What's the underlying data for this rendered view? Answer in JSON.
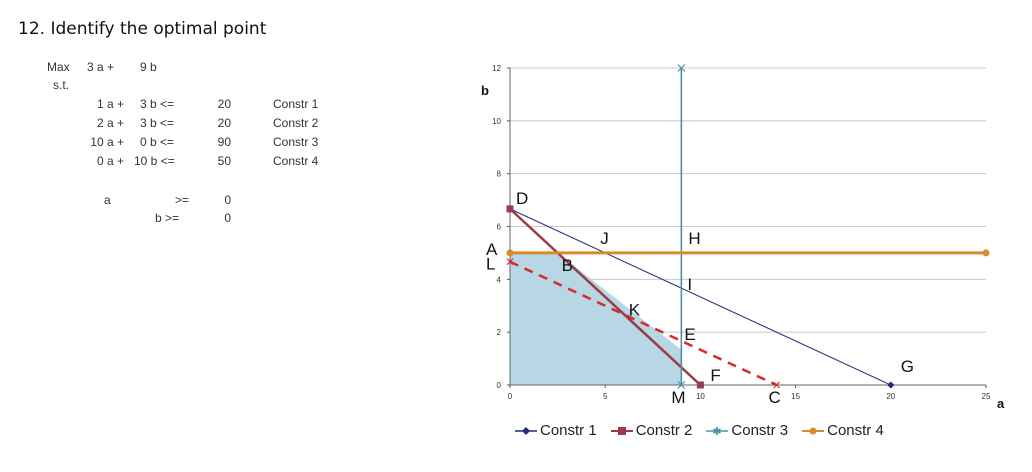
{
  "title": "12. Identify the optimal point",
  "lp": {
    "objective": {
      "label": "Max",
      "a": "3 a +",
      "b": "9 b"
    },
    "st": "s.t.",
    "constraints": [
      {
        "a": "1 a +",
        "b": "3 b <=",
        "rhs": "20",
        "name": "Constr 1"
      },
      {
        "a": "2 a +",
        "b": "3 b <=",
        "rhs": "20",
        "name": "Constr 2"
      },
      {
        "a": "10 a +",
        "b": "0 b <=",
        "rhs": "90",
        "name": "Constr 3"
      },
      {
        "a": "0 a +",
        "b": "10 b <=",
        "rhs": "50",
        "name": "Constr 4"
      }
    ],
    "nonneg": [
      {
        "var": "a",
        "op": ">=",
        "rhs": "0"
      },
      {
        "var": "b >=",
        "op": "",
        "rhs": "0"
      }
    ]
  },
  "chart_data": {
    "type": "line",
    "xlabel": "a",
    "ylabel": "b",
    "xlim": [
      0,
      25
    ],
    "ylim": [
      0,
      12
    ],
    "xticks": [
      0,
      5,
      10,
      15,
      20,
      25
    ],
    "yticks": [
      0,
      2,
      4,
      6,
      8,
      10,
      12
    ],
    "grid": "horizontal",
    "legend_position": "bottom",
    "series": [
      {
        "name": "Constr 1",
        "color": "#1f2a7a",
        "marker": "diamond",
        "points": [
          [
            0,
            6.667
          ],
          [
            20,
            0
          ]
        ]
      },
      {
        "name": "Constr 2",
        "color": "#9b3b4a",
        "marker": "square",
        "points": [
          [
            0,
            6.667
          ],
          [
            10,
            0
          ]
        ]
      },
      {
        "name": "Constr 3",
        "color": "#4a90a8",
        "marker": "star",
        "points": [
          [
            9,
            0
          ],
          [
            9,
            12
          ]
        ]
      },
      {
        "name": "Constr 4",
        "color": "#d98b2b",
        "marker": "circle",
        "points": [
          [
            0,
            5
          ],
          [
            25,
            5
          ]
        ]
      }
    ],
    "objective_line": {
      "color": "#d62b2b",
      "style": "dashed",
      "points": [
        [
          0,
          4.667
        ],
        [
          14,
          0
        ]
      ]
    },
    "feasible_region": {
      "color": "#b6d7e3",
      "points": [
        [
          0,
          0
        ],
        [
          0,
          5
        ],
        [
          2.5,
          5
        ],
        [
          9,
          1.333
        ],
        [
          9,
          0
        ]
      ]
    },
    "point_labels": [
      {
        "text": "D",
        "x": 0,
        "y": 6.667
      },
      {
        "text": "J",
        "x": 5,
        "y": 5
      },
      {
        "text": "H",
        "x": 9,
        "y": 5
      },
      {
        "text": "A",
        "x": 0,
        "y": 5
      },
      {
        "text": "L",
        "x": 0,
        "y": 4.667
      },
      {
        "text": "B",
        "x": 2.5,
        "y": 5
      },
      {
        "text": "I",
        "x": 9,
        "y": 3.667
      },
      {
        "text": "K",
        "x": 6.5,
        "y": 2.333
      },
      {
        "text": "E",
        "x": 9,
        "y": 1.333
      },
      {
        "text": "F",
        "x": 10,
        "y": 0
      },
      {
        "text": "G",
        "x": 20,
        "y": 0
      },
      {
        "text": "M",
        "x": 9,
        "y": 0
      },
      {
        "text": "C",
        "x": 14,
        "y": 0
      }
    ]
  }
}
